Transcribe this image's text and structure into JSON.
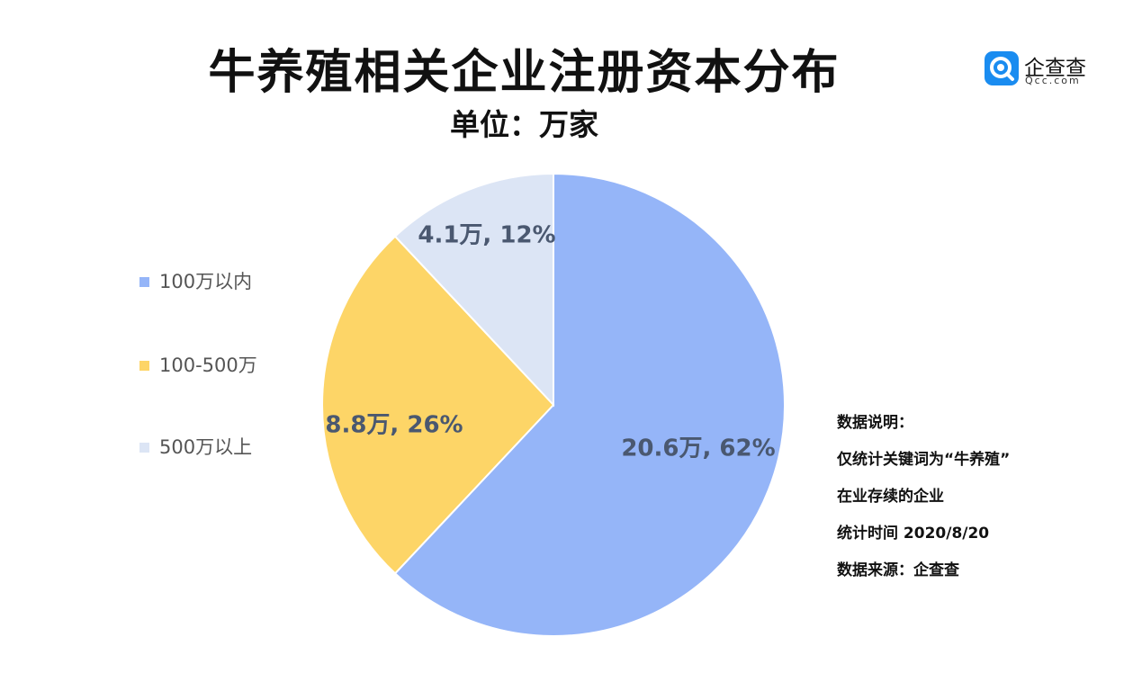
{
  "title": "牛养殖相关企业注册资本分布",
  "subtitle": "单位：万家",
  "logo": {
    "name": "企查查",
    "domain": "Qcc.com"
  },
  "notes": [
    "数据说明：",
    "仅统计关键词为“牛养殖”",
    "在业存续的企业",
    "统计时间 2020/8/20",
    "数据来源：企查查"
  ],
  "chart_data": {
    "type": "pie",
    "unit": "万",
    "slices": [
      {
        "name": "100万以内",
        "value": 20.6,
        "percent": 62,
        "label": "20.6万, 62%",
        "color": "#95b5f8"
      },
      {
        "name": "100-500万",
        "value": 8.8,
        "percent": 26,
        "label": "8.8万, 26%",
        "color": "#fdd567"
      },
      {
        "name": "500万以上",
        "value": 4.1,
        "percent": 12,
        "label": "4.1万, 12%",
        "color": "#dce5f5"
      }
    ],
    "start_angle_deg": 0,
    "direction": "clockwise",
    "legend_position": "left"
  }
}
